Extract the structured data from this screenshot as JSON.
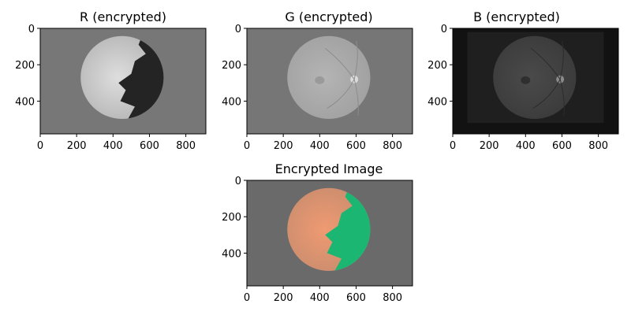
{
  "figure": {
    "background": "#ffffff"
  },
  "chart_data": [
    {
      "type": "image",
      "title": "R (encrypted)",
      "channel": "R",
      "colormap": "gray",
      "background_color": "#777777",
      "frame_color": "#777777",
      "xlim": [
        0,
        910
      ],
      "ylim": [
        580,
        0
      ],
      "x_ticks": [
        0,
        200,
        400,
        600,
        800
      ],
      "y_ticks": [
        0,
        200,
        400
      ],
      "x_tick_labels": [
        "0",
        "200",
        "400",
        "600",
        "800"
      ],
      "y_tick_labels": [
        "0",
        "200",
        "400"
      ],
      "disc": {
        "center_x": 450,
        "center_y": 270,
        "radius": 228
      },
      "disc_colors": {
        "light": "#dedede",
        "dark": "#242424",
        "mid": "#b4b4b4"
      }
    },
    {
      "type": "image",
      "title": "G (encrypted)",
      "channel": "G",
      "colormap": "gray",
      "background_color": "#767676",
      "frame_color": "#767676",
      "xlim": [
        0,
        910
      ],
      "ylim": [
        580,
        0
      ],
      "x_ticks": [
        0,
        200,
        400,
        600,
        800
      ],
      "y_ticks": [
        0,
        200,
        400
      ],
      "x_tick_labels": [
        "0",
        "200",
        "400",
        "600",
        "800"
      ],
      "y_tick_labels": [
        "0",
        "200",
        "400"
      ],
      "disc": {
        "center_x": 450,
        "center_y": 270,
        "radius": 228
      },
      "disc_colors": {
        "light": "#b4b4b4",
        "dark": "#8a8a8a",
        "mid": "#a0a0a0"
      }
    },
    {
      "type": "image",
      "title": "B (encrypted)",
      "channel": "B",
      "colormap": "gray",
      "background_color": "#121212",
      "frame_color": "#1f1f1f",
      "xlim": [
        0,
        910
      ],
      "ylim": [
        580,
        0
      ],
      "x_ticks": [
        0,
        200,
        400,
        600,
        800
      ],
      "y_ticks": [
        0,
        200,
        400
      ],
      "x_tick_labels": [
        "0",
        "200",
        "400",
        "600",
        "800"
      ],
      "y_tick_labels": [
        "0",
        "200",
        "400"
      ],
      "disc": {
        "center_x": 450,
        "center_y": 270,
        "radius": 228
      },
      "disc_colors": {
        "light": "#4a4a4a",
        "dark": "#202020",
        "mid": "#3a3a3a"
      }
    },
    {
      "type": "image",
      "title": "Encrypted Image",
      "channel": "RGB",
      "colormap": "rgb",
      "background_color": "#6a6a6a",
      "frame_color": "#6a6a6a",
      "xlim": [
        0,
        910
      ],
      "ylim": [
        580,
        0
      ],
      "x_ticks": [
        0,
        200,
        400,
        600,
        800
      ],
      "y_ticks": [
        0,
        200,
        400
      ],
      "x_tick_labels": [
        "0",
        "200",
        "400",
        "600",
        "800"
      ],
      "y_tick_labels": [
        "0",
        "200",
        "400"
      ],
      "disc": {
        "center_x": 450,
        "center_y": 270,
        "radius": 228
      },
      "disc_colors": {
        "light": "#ef9a72",
        "dark": "#1cb673",
        "mid": "#c88c6e"
      }
    }
  ]
}
